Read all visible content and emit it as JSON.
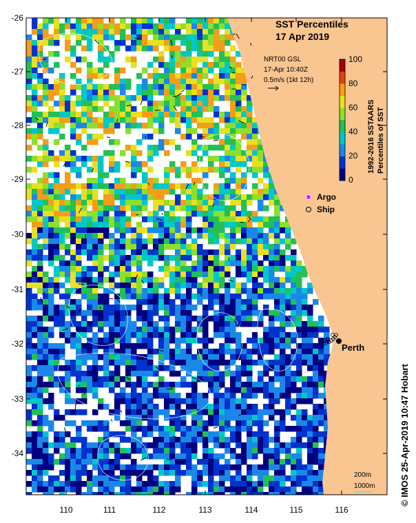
{
  "title": {
    "line1": "SST Percentiles",
    "line2": "17 Apr 2019"
  },
  "info": {
    "line1": "NRT00 GSL",
    "line2": "17-Apr 10:40Z",
    "line3": "0.5m/s (1kt 12h)"
  },
  "colorbar": {
    "label_line1": "1992-2016 SSTAARS",
    "label_line2": "Percentiles of SST",
    "ticks": [
      "100",
      "80",
      "60",
      "40",
      "20",
      "0"
    ],
    "colors": [
      "#000080",
      "#0033cc",
      "#1a88e8",
      "#00c8c8",
      "#22c055",
      "#8ede2c",
      "#e8e020",
      "#f59c18",
      "#e64010",
      "#a50000"
    ]
  },
  "legend": {
    "argo": "Argo",
    "ship": "Ship"
  },
  "place": {
    "perth": "Perth"
  },
  "scale": {
    "small": "200m",
    "large": "1000m"
  },
  "axes": {
    "x_ticks": [
      "110",
      "111",
      "112",
      "113",
      "114",
      "115",
      "116"
    ],
    "y_ticks": [
      "-26",
      "-27",
      "-28",
      "-29",
      "-30",
      "-31",
      "-32",
      "-33",
      "-34"
    ]
  },
  "credit": "© IMOS 25-Apr-2019 10:47 Hobart",
  "colors": {
    "land": "#f9c591",
    "ocean_fill": "#ffffff",
    "argo_marker": "#ff00ff"
  }
}
